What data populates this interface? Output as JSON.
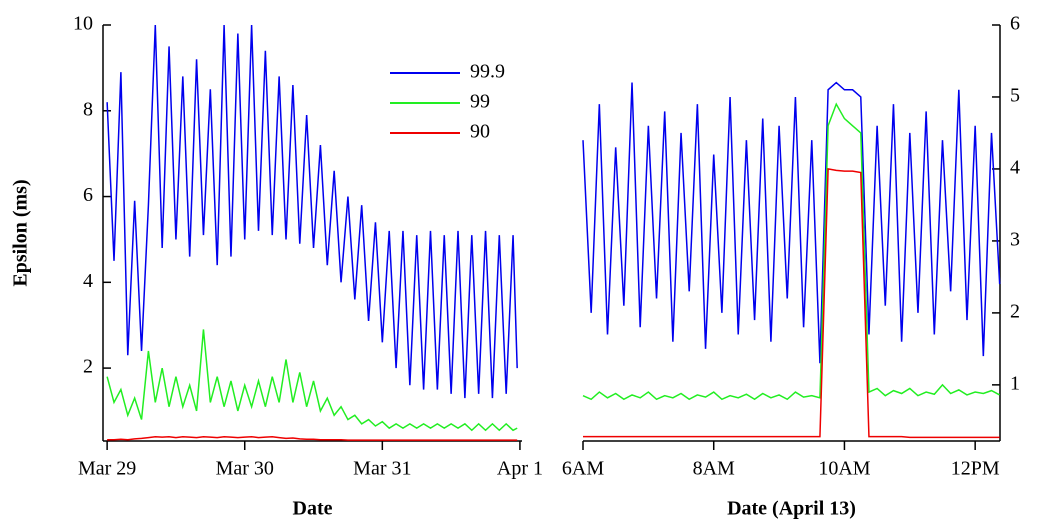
{
  "chart_data": [
    {
      "type": "line",
      "xlabel": "Date",
      "ylabel": "Epsilon (ms)",
      "legend": "upper center",
      "xlim": [
        -0.03,
        3.015
      ],
      "xticks": [
        {
          "value": 0,
          "label": "Mar 29"
        },
        {
          "value": 1,
          "label": "Mar 30"
        },
        {
          "value": 2,
          "label": "Mar 31"
        },
        {
          "value": 3,
          "label": "Apr 1"
        }
      ],
      "ylim": [
        0.3,
        10
      ],
      "yticks": [
        2,
        4,
        6,
        8,
        10
      ],
      "x": [
        0,
        0.05,
        0.1,
        0.15,
        0.2,
        0.25,
        0.3,
        0.35,
        0.4,
        0.45,
        0.5,
        0.55,
        0.6,
        0.65,
        0.7,
        0.75,
        0.8,
        0.85,
        0.9,
        0.95,
        1,
        1.05,
        1.1,
        1.15,
        1.2,
        1.25,
        1.3,
        1.35,
        1.4,
        1.45,
        1.5,
        1.55,
        1.6,
        1.65,
        1.7,
        1.75,
        1.8,
        1.85,
        1.9,
        1.95,
        2,
        2.05,
        2.1,
        2.15,
        2.2,
        2.25,
        2.3,
        2.35,
        2.4,
        2.45,
        2.5,
        2.55,
        2.6,
        2.65,
        2.7,
        2.75,
        2.8,
        2.85,
        2.9,
        2.95,
        2.98
      ],
      "series": [
        {
          "name": "99.9",
          "color": "#0000ee",
          "values": [
            8.2,
            4.5,
            8.9,
            2.3,
            5.9,
            2.4,
            5.8,
            10,
            4.8,
            9.5,
            5.0,
            8.8,
            4.6,
            9.2,
            5.1,
            8.5,
            4.4,
            10,
            4.6,
            9.8,
            5.0,
            10,
            5.2,
            9.4,
            5.1,
            8.8,
            5.0,
            8.6,
            4.9,
            7.9,
            4.8,
            7.2,
            4.4,
            6.6,
            4.0,
            6.0,
            3.6,
            5.8,
            3.1,
            5.4,
            2.6,
            5.2,
            2.0,
            5.2,
            1.6,
            5.1,
            1.5,
            5.2,
            1.5,
            5.1,
            1.4,
            5.2,
            1.3,
            5.1,
            1.4,
            5.2,
            1.3,
            5.1,
            1.4,
            5.1,
            2.0
          ]
        },
        {
          "name": "99",
          "color": "#22ee22",
          "values": [
            1.8,
            1.2,
            1.5,
            0.9,
            1.3,
            0.8,
            2.4,
            1.2,
            2.0,
            1.1,
            1.8,
            1.1,
            1.6,
            1.0,
            2.9,
            1.2,
            1.8,
            1.1,
            1.7,
            1.0,
            1.6,
            1.1,
            1.7,
            1.1,
            1.8,
            1.2,
            2.2,
            1.2,
            1.9,
            1.1,
            1.7,
            1.0,
            1.3,
            0.9,
            1.1,
            0.8,
            0.9,
            0.7,
            0.8,
            0.65,
            0.75,
            0.6,
            0.7,
            0.6,
            0.7,
            0.6,
            0.7,
            0.6,
            0.7,
            0.6,
            0.7,
            0.6,
            0.7,
            0.55,
            0.7,
            0.55,
            0.7,
            0.55,
            0.7,
            0.55,
            0.6
          ]
        },
        {
          "name": "90",
          "color": "#ee0000",
          "values": [
            0.33,
            0.33,
            0.34,
            0.33,
            0.35,
            0.36,
            0.38,
            0.4,
            0.39,
            0.4,
            0.38,
            0.4,
            0.39,
            0.38,
            0.4,
            0.39,
            0.38,
            0.4,
            0.39,
            0.38,
            0.39,
            0.4,
            0.38,
            0.39,
            0.4,
            0.38,
            0.36,
            0.37,
            0.35,
            0.34,
            0.34,
            0.33,
            0.33,
            0.33,
            0.33,
            0.32,
            0.32,
            0.32,
            0.32,
            0.32,
            0.32,
            0.32,
            0.32,
            0.32,
            0.32,
            0.32,
            0.32,
            0.32,
            0.32,
            0.32,
            0.32,
            0.32,
            0.32,
            0.32,
            0.32,
            0.32,
            0.32,
            0.32,
            0.32,
            0.32,
            0.32
          ]
        }
      ]
    },
    {
      "type": "line",
      "xlabel": "Date (April 13)",
      "xlim": [
        6,
        12.38
      ],
      "xticks": [
        {
          "value": 6,
          "label": "6AM"
        },
        {
          "value": 8,
          "label": "8AM"
        },
        {
          "value": 10,
          "label": "10AM"
        },
        {
          "value": 12,
          "label": "12PM"
        }
      ],
      "y2lim": [
        0.22,
        6
      ],
      "y2ticks": [
        1,
        2,
        3,
        4,
        5,
        6
      ],
      "x": [
        6,
        6.125,
        6.25,
        6.375,
        6.5,
        6.625,
        6.75,
        6.875,
        7,
        7.125,
        7.25,
        7.375,
        7.5,
        7.625,
        7.75,
        7.875,
        8,
        8.125,
        8.25,
        8.375,
        8.5,
        8.625,
        8.75,
        8.875,
        9,
        9.125,
        9.25,
        9.375,
        9.5,
        9.625,
        9.75,
        9.875,
        10,
        10.125,
        10.25,
        10.375,
        10.5,
        10.625,
        10.75,
        10.875,
        11,
        11.125,
        11.25,
        11.375,
        11.5,
        11.625,
        11.75,
        11.875,
        12,
        12.125,
        12.25,
        12.375
      ],
      "series": [
        {
          "color": "#0000ee",
          "axis": "y2",
          "values": [
            4.4,
            2.0,
            4.9,
            1.7,
            4.3,
            2.1,
            5.2,
            1.8,
            4.6,
            2.2,
            4.8,
            1.6,
            4.5,
            2.3,
            4.9,
            1.5,
            4.2,
            2.0,
            5.0,
            1.7,
            4.4,
            1.9,
            4.7,
            1.6,
            4.6,
            2.2,
            5.0,
            1.8,
            4.4,
            1.3,
            5.1,
            5.2,
            5.1,
            5.1,
            5.0,
            1.7,
            4.6,
            2.1,
            4.9,
            1.6,
            4.5,
            2.0,
            4.8,
            1.7,
            4.4,
            2.3,
            5.1,
            1.9,
            4.6,
            1.4,
            4.5,
            2.4
          ]
        },
        {
          "color": "#22ee22",
          "axis": "y2",
          "values": [
            0.85,
            0.8,
            0.9,
            0.82,
            0.88,
            0.8,
            0.86,
            0.82,
            0.9,
            0.8,
            0.85,
            0.82,
            0.88,
            0.8,
            0.86,
            0.83,
            0.9,
            0.8,
            0.85,
            0.82,
            0.87,
            0.8,
            0.88,
            0.82,
            0.86,
            0.8,
            0.9,
            0.83,
            0.85,
            0.82,
            4.6,
            4.9,
            4.7,
            4.6,
            4.5,
            0.9,
            0.95,
            0.85,
            0.92,
            0.88,
            0.95,
            0.85,
            0.9,
            0.87,
            1.0,
            0.88,
            0.93,
            0.86,
            0.9,
            0.88,
            0.92,
            0.86
          ]
        },
        {
          "color": "#ee0000",
          "axis": "y2",
          "values": [
            0.28,
            0.28,
            0.28,
            0.28,
            0.28,
            0.28,
            0.28,
            0.28,
            0.28,
            0.28,
            0.28,
            0.28,
            0.28,
            0.28,
            0.28,
            0.28,
            0.28,
            0.28,
            0.28,
            0.28,
            0.28,
            0.28,
            0.28,
            0.28,
            0.28,
            0.28,
            0.28,
            0.28,
            0.28,
            0.28,
            4.0,
            3.98,
            3.97,
            3.97,
            3.95,
            0.28,
            0.28,
            0.28,
            0.28,
            0.28,
            0.27,
            0.27,
            0.27,
            0.27,
            0.27,
            0.27,
            0.27,
            0.27,
            0.27,
            0.27,
            0.27,
            0.27
          ]
        }
      ]
    }
  ]
}
